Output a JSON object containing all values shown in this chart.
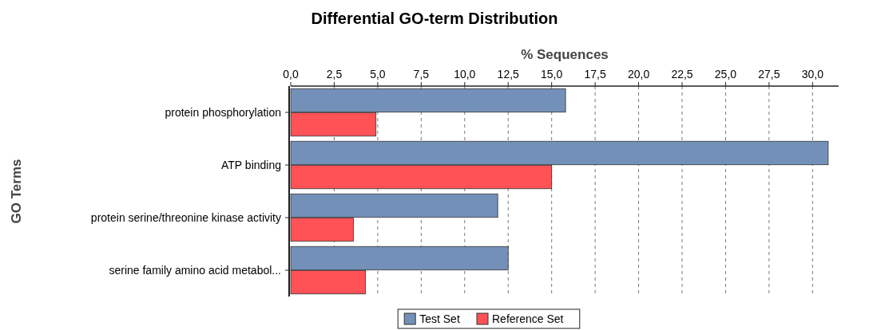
{
  "chart_data": {
    "type": "bar",
    "orientation": "horizontal",
    "title": "Differential GO-term Distribution",
    "xlabel": "% Sequences",
    "ylabel": "GO Terms",
    "categories": [
      "protein phosphorylation",
      "ATP binding",
      "protein serine/threonine kinase activity",
      "serine family amino acid metabol..."
    ],
    "series": [
      {
        "name": "Test Set",
        "color": "#7390b8",
        "values": [
          15.8,
          30.9,
          11.9,
          12.5
        ]
      },
      {
        "name": "Reference Set",
        "color": "#fe5257",
        "values": [
          4.9,
          15.0,
          3.6,
          4.3
        ]
      }
    ],
    "xlim": [
      0,
      31.5
    ],
    "xticks": [
      {
        "value": 0,
        "label": "0,0"
      },
      {
        "value": 2.5,
        "label": "2,5"
      },
      {
        "value": 5,
        "label": "5,0"
      },
      {
        "value": 7.5,
        "label": "7,5"
      },
      {
        "value": 10,
        "label": "10,0"
      },
      {
        "value": 12.5,
        "label": "12,5"
      },
      {
        "value": 15,
        "label": "15,0"
      },
      {
        "value": 17.5,
        "label": "17,5"
      },
      {
        "value": 20,
        "label": "20,0"
      },
      {
        "value": 22.5,
        "label": "22,5"
      },
      {
        "value": 25,
        "label": "25,0"
      },
      {
        "value": 27.5,
        "label": "27,5"
      },
      {
        "value": 30,
        "label": "30,0"
      }
    ],
    "grid": "x",
    "legend": "bottom"
  }
}
